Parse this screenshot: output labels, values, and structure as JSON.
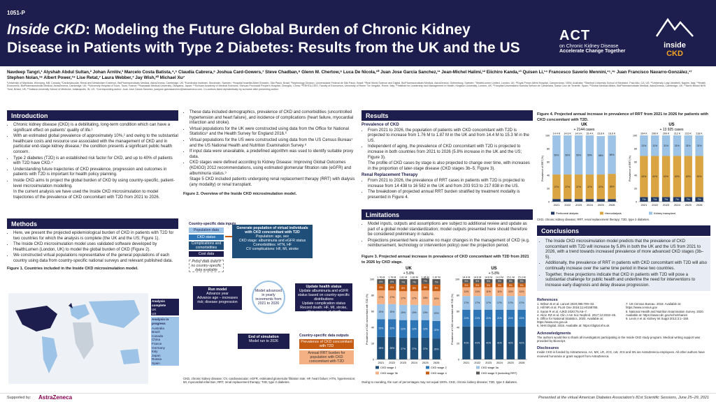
{
  "header": {
    "poster_id": "1051-P",
    "title_italic": "Inside CKD",
    "title_rest": ": Modeling the Future Global Burden of Chronic Kidney Disease in Patients with Type 2 Diabetes: Results from the UK and the US",
    "logo_act": "ACT",
    "logo_act_sub": "on Chronic Kidney Disease",
    "logo_act_tag": "Accelerate Change Together",
    "logo_inside": "inside",
    "logo_ckd": "CKD"
  },
  "authors": "Navdeep Tangri,¹ Alyshah Abdul Sultan,² Johan Ärnlöv,³ Marcelo Costa Batista,⁴,⁵ Claudia Cabrera,⁶ Joshua Card-Gowers,⁷ Steve Chadban,⁸ Glenn M. Chertow,⁹ Luca De Nicola,¹⁰ Juan Jose Garcia Sanchez,¹¹ Jean-Michel Halimi,¹² Eiichiro Kanda,¹³ Quisen Li,¹⁴ Francesco Saverio Mennini,¹⁵,¹⁶ Juan Francisco Navarro-González,¹⁷ Stephen Nolan,¹⁸ Albert Power,¹⁹ Lise Retat,⁷ Laura Webber,⁷ Jay Wish,²⁰ Michael Xu⁷",
  "affiliations": "¹University of Manitoba, Winnipeg, MB, Canada; ²Cardiovascular, Renal and Metabolism Evidence, BioPharmaceuticals Medical, AstraZeneca, Cambridge, UK; ³Karolinska Institutet, Stockholm, Sweden; ⁴Hospital Israelita Albert Einstein, São Paulo, Brazil; ⁵Nephrology Division, Universidade Federal de São Paulo, Brazil; ⁶Real World Science and Digital, BioPharmaceuticals Medical, AstraZeneca, Gothenburg, Sweden; ⁷HealthLumen Limited, London, UK; ⁸Royal Prince Alfred Hospital, Camperdown, NSW, Australia; ⁹Stanford University School of Medicine, Palo Alto, CA, US; ¹⁰University Luigi Vanvitelli, Naples, Italy; ¹¹Health Economics, BioPharmaceuticals Medical, AstraZeneca, Cambridge, UK; ¹²University Hospital of Tours, Tours, France; ¹³Kawasaki Medical University, Okayama, Japan; ¹⁴Sichuan Academy of Medical Sciences, Sichuan Provincial People's Hospital, Chengdu, China; ¹⁵EEHTA-CEIS, Faculty of Economics, University of Rome 'Tor Vergata', Rome, Italy; ¹⁶Institute for Leadership and Management in Health, Kingston University, London, UK; ¹⁷Hospital Universitario Nuestra Señora de Candelaria, Santa Cruz de Tenerife, Spain; ¹⁸Global Medical Affairs, BioPharmaceuticals Medical, AstraZeneca, Cambridge, UK; ¹⁹North Bristol NHS Trust, Bristol, UK; ²⁰Indiana University School of Medicine, Indianapolis, IN, US. *Corresponding author: Juan Jose Garcia Sanchez, juanjose.garciasanchez@astrazeneca.com. Co-authors listed alphabetically by surname after presenting author",
  "intro": {
    "heading": "Introduction",
    "items": [
      "Chronic kidney disease (CKD) is a debilitating, long-term condition which can have a significant effect on patients' quality of life.¹",
      "With an estimated global prevalence of approximately 10%,² and owing to the substantial healthcare costs and resource use associated with the management of CKD and in particular end-stage kidney disease,³ the condition presents a significant public health concern.",
      "Type 2 diabetes (T2D) is an established risk factor for CKD, and up to 40% of patients with T2D have CKD.⁴",
      "Understanding future trajectories of CKD prevalence, progression and outcomes in patients with T2D is important for health policy planning.",
      "Inside CKD aims to project the global burden of CKD by using country-specific, patient-level microsimulation modelling."
    ],
    "sub": "In the current analysis we have used the Inside CKD microsimulation to model trajectories of the prevalence of CKD concomitant with T2D from 2021 to 2026."
  },
  "methods": {
    "heading": "Methods",
    "items": [
      "Here, we present the projected epidemiological burden of CKD in patients with T2D for two countries for which the analysis is complete (the UK and the US; Figure 1).",
      "The Inside CKD microsimulation model uses validated software developed by HealthLumen (London, UK) to model the global burden of CKD (Figure 2).",
      "We constructed virtual populations representative of the general populations of each country using data from country-specific national surveys and relevant published data."
    ],
    "fig1_caption": "Figure 1. Countries included in the Inside CKD microsimulation model.",
    "legend_complete": "Analysis complete",
    "legend_complete_items": [
      "UK",
      "US"
    ],
    "legend_progress": "Analysis in progress",
    "legend_progress_items": [
      "Australia",
      "Brazil",
      "Canada",
      "China",
      "France",
      "Germany",
      "Italy",
      "Japan",
      "Russia",
      "Spain"
    ]
  },
  "col2": {
    "items": [
      "These data included demographics, prevalence of CKD and comorbidities (uncontrolled hypertension and heart failure), and incidence of complications (heart failure, myocardial infarction and stroke).",
      "Virtual populations for the UK were constructed using data from the Office for National Statistics⁵ and the Health Survey for England 2016.⁶",
      "Virtual populations for the US were constructed using data from the US Census Bureau⁷ and the US National Health and Nutrition Examination Survey.⁸",
      "If input data were unavailable, a predefined algorithm was used to identify suitable proxy data.",
      "CKD stages were defined according to Kidney Disease: Improving Global Outcomes (KDIGO) 2012 recommendations, using estimated glomerular filtration rate (eGFR) and albuminuria status.⁹"
    ],
    "sub": "Stage 5 CKD included patients undergoing renal replacement therapy (RRT) with dialysis (any modality) or renal transplant.",
    "fig2_caption": "Figure 2. Overview of the Inside CKD microsimulation model.",
    "fig2": {
      "inputs_label": "Country-specific data inputs",
      "input_boxes": [
        "Population data",
        "CKD status",
        "Complications and comorbidities",
        "Cost data"
      ],
      "proxy": "Proxy data used if no country-specific data available",
      "gen_title": "Generate population of virtual individuals with CKD concomitant with T2D",
      "gen_lines": [
        "Population: age, sex",
        "CKD stage: albuminuria and eGFR status",
        "Comorbidities: HTN, HF",
        "CV complications: HF, MI, stroke"
      ],
      "run_title": "Run model",
      "run_lines": [
        "Advance year",
        "Advance age – increases risk; disease progression"
      ],
      "center": "Model advanced in yearly increments from 2021 to 2026",
      "update_title": "Update health status",
      "update_lines": [
        "Update albuminuria and eGFR status based on country-specific distributions",
        "Update complication status",
        "Record death: HF, MI, stroke, other causes of death"
      ],
      "end_title": "End of simulation",
      "end_sub": "Model run to 2026",
      "outputs_label": "Country-specific data outputs",
      "output_boxes": [
        "Prevalence of CKD concomitant with T2D",
        "Annual RRT burden for population with CKD concomitant with T2D"
      ]
    },
    "fig2_footnote": "CKD, chronic kidney disease; CV, cardiovascular; eGFR, estimated glomerular filtration rate; HF, heart failure; HTN, hypertension; MI, myocardial infarction; RRT, renal replacement therapy; T2D, type 2 diabetes."
  },
  "results": {
    "heading": "Results",
    "prev_head": "Prevalence of CKD",
    "prev_items": [
      "From 2021 to 2026, the population of patients with CKD concomitant with T2D is projected to increase from 1.76 M to 1.87 M in the UK and from 14.4 M to 15.3 M in the US.",
      "Independent of aging, the prevalence of CKD concomitant with T2D is projected to increase in both countries from 2021 to 2026 (5.8% increase in the UK and the US; Figure 3)."
    ],
    "prev_sub": "The profile of CKD cases by stage is also projected to change over time, with increases in the proportion of later-stage disease (CKD stages 3b–5; Figure 3).",
    "rrt_head": "Renal Replacement Therapy",
    "rrt_items": [
      "From 2021 to 2026, the prevalence of RRT cases in patients with T2D is projected to increase from 14 438 to 16 582 in the UK and from 203 913 to 217 838 in the US.",
      "The breakdown of projected annual RRT burden stratified by treatment modality is presented in Figure 4."
    ]
  },
  "limitations": {
    "heading": "Limitations",
    "items": [
      "Model inputs, outputs and assumptions are subject to additional review and update as part of a global model standardization; model outputs presented here should therefore be considered preliminary in nature.",
      "Projections presented here assume no major changes in the management of CKD (e.g. reimbursement, technology or intervention policy) over the projection period."
    ]
  },
  "fig3": {
    "caption": "Figure 3. Projected annual increase in prevalence of CKD concomitant with T2D from 2021 to 2026 by CKD stage.",
    "footnote": "Owing to rounding, the sum of percentages may not equal 100%. CKD, chronic kidney disease; T2D, type 2 diabetes.",
    "legend": [
      "CKD stage 1",
      "CKD stage 2",
      "CKD stage 3a",
      "CKD stage 3b",
      "CKD stage 4",
      "CKD stage 5 (including RRT)"
    ]
  },
  "fig4": {
    "caption": "Figure 4. Projected annual increase in prevalence of RRT from 2021 to 2026 for patients with CKD concomitant with T2D.",
    "legend": [
      "Peritoneal dialysis",
      "Hemodialysis",
      "Kidney transplant"
    ],
    "footnote": "CKD, chronic kidney disease; RRT, renal replacement therapy; T2D, type 2 diabetes."
  },
  "conclusions": {
    "heading": "Conclusions",
    "items": [
      "The Inside CKD microsimulation model predicts that the prevalence of CKD concomitant with T2D will increase by 5.8% in both the UK and the US from 2021 to 2026, with a trend towards increased prevalence of more advanced CKD stages (3b–5).",
      "Additionally, the prevalence of RRT in patients with CKD concomitant with T2D will also continually increase over the same time period in these two countries.",
      "Together, these projections indicate that CKD in patients with T2D will pose a substantial challenge for public health and underline the need for interventions to increase early diagnosis and delay disease progression."
    ]
  },
  "refs": {
    "heading": "References",
    "left": [
      "1. Wilson B et al. Lancet 2020;395:709–33.",
      "2. Hill NR et al. PLoS One 2016;11:e0158765.",
      "3. Saran R et al. AJKD 2020;75:A6–7.",
      "4. Alicic RZ et al. Clin J Am Soc Nephrol. 2017;12:2032–45.",
      "5. Office for National Statistics. 2020. Available at: https://www.ons.gov.uk",
      "6. NHS Digital. 2018. Available at: https://digital.nhs.uk"
    ],
    "right": [
      "7. US Census Bureau. 2019. Available at: https://www.census.gov",
      "8. National Health and Nutrition Examination Survey. 2020. Available at: https://www.cdc.gov/nchs/nhanes",
      "9. Levin A et al. Kidney Int Suppl 2013;3:1–150."
    ]
  },
  "ack": {
    "heading": "Acknowledgments",
    "text": "The authors would like to thank all investigators participating in the Inside CKD study program. Medical writing support was provided by Bioscript."
  },
  "disc": {
    "heading": "Disclosures",
    "text": "Inside CKD is funded by AstraZeneca. AA, MX, LR, JCG, LW, JCS and SN are AstraZeneca employees. All other authors have received honoraria or grant support from AstraZeneca."
  },
  "footer": {
    "supported": "Supported by:",
    "sponsor": "AstraZeneca",
    "presented": "Presented at the virtual American Diabetes Association's 81st Scientific Sessions, June 25–29, 2021"
  },
  "colors": {
    "navy": "#1d1d4e",
    "stage1": "#1f4e79",
    "stage2": "#2e75b6",
    "stage3a": "#9dc3e6",
    "stage3b": "#f4b183",
    "stage4": "#c55a11",
    "stage5": "#595959",
    "pd": "#1f3864",
    "hd": "#d9a441",
    "kt": "#9dc3e6"
  },
  "chart_data": [
    {
      "type": "bar",
      "title": "UK",
      "subtitle": "+ 5.8%",
      "ylabel": "Prevalence of CKD concomitant with T2D (%)",
      "categories": [
        "2021",
        "2022",
        "2023",
        "2024",
        "2025",
        "2026"
      ],
      "totals": [
        "1.76 M",
        "1.79 M",
        "1.81 M",
        "1.83 M",
        "1.85 M",
        "1.87 M"
      ],
      "series": [
        {
          "name": "CKD stage 1",
          "values": [
            28,
            28,
            27,
            27,
            27,
            26
          ]
        },
        {
          "name": "CKD stage 2",
          "values": [
            22,
            22,
            22,
            22,
            22,
            22
          ]
        },
        {
          "name": "CKD stage 3a",
          "values": [
            19,
            19,
            19,
            19,
            19,
            19
          ]
        },
        {
          "name": "CKD stage 3b",
          "values": [
            17,
            17,
            17,
            17,
            18,
            18
          ]
        },
        {
          "name": "CKD stage 4",
          "values": [
            8,
            8,
            8,
            8,
            8,
            8
          ]
        },
        {
          "name": "CKD stage 5 (including RRT)",
          "values": [
            6,
            6,
            7,
            7,
            7,
            7
          ]
        }
      ]
    },
    {
      "type": "bar",
      "title": "US",
      "subtitle": "+ 5.8%",
      "ylabel": "Prevalence of CKD concomitant with T2D (%)",
      "categories": [
        "2021",
        "2022",
        "2023",
        "2024",
        "2025",
        "2026"
      ],
      "totals": [
        "14.4 M",
        "14.6 M",
        "14.8 M",
        "14.9 M",
        "15.1 M",
        "15.3 M"
      ],
      "series": [
        {
          "name": "CKD stage 1",
          "values": [
            41,
            41,
            41,
            41,
            41,
            41
          ]
        },
        {
          "name": "CKD stage 2",
          "values": [
            21,
            21,
            21,
            21,
            21,
            21
          ]
        },
        {
          "name": "CKD stage 3a",
          "values": [
            17,
            17,
            17,
            17,
            17,
            17
          ]
        },
        {
          "name": "CKD stage 3b",
          "values": [
            11,
            11,
            11,
            11,
            11,
            11
          ]
        },
        {
          "name": "CKD stage 4",
          "values": [
            5,
            5,
            5,
            5,
            5,
            5
          ]
        },
        {
          "name": "CKD stage 5 (including RRT)",
          "values": [
            5,
            5,
            5,
            5,
            5,
            5
          ]
        }
      ]
    },
    {
      "type": "bar",
      "title": "UK",
      "subtitle": "+ 2144 cases",
      "ylabel": "Prevalence of RRT (%)",
      "categories": [
        "2021",
        "2022",
        "2023",
        "2024",
        "2025",
        "2026"
      ],
      "totals": [
        "14.4 K",
        "14.6 K",
        "14.9 K",
        "15.4 K",
        "15.8 K",
        "16.6 K"
      ],
      "series": [
        {
          "name": "Peritoneal dialysis",
          "values": [
            4,
            4,
            4,
            4,
            4,
            4
          ]
        },
        {
          "name": "Hemodialysis",
          "values": [
            37,
            37,
            37,
            37,
            37,
            38
          ]
        },
        {
          "name": "Kidney transplant",
          "values": [
            59,
            59,
            59,
            59,
            58,
            58
          ]
        }
      ]
    },
    {
      "type": "bar",
      "title": "US",
      "subtitle": "+ 13 925 cases",
      "ylabel": "Prevalence of RRT (%)",
      "categories": [
        "2021",
        "2022",
        "2023",
        "2024",
        "2025",
        "2026"
      ],
      "totals": [
        "204 K",
        "206 K",
        "209 K",
        "212 K",
        "215 K",
        "218 K"
      ],
      "series": [
        {
          "name": "Peritoneal dialysis",
          "values": [
            7,
            7,
            7,
            7,
            7,
            7
          ]
        },
        {
          "name": "Hemodialysis",
          "values": [
            62,
            62,
            62,
            62,
            62,
            62
          ]
        },
        {
          "name": "Kidney transplant",
          "values": [
            31,
            31,
            31,
            31,
            31,
            31
          ]
        }
      ]
    }
  ]
}
